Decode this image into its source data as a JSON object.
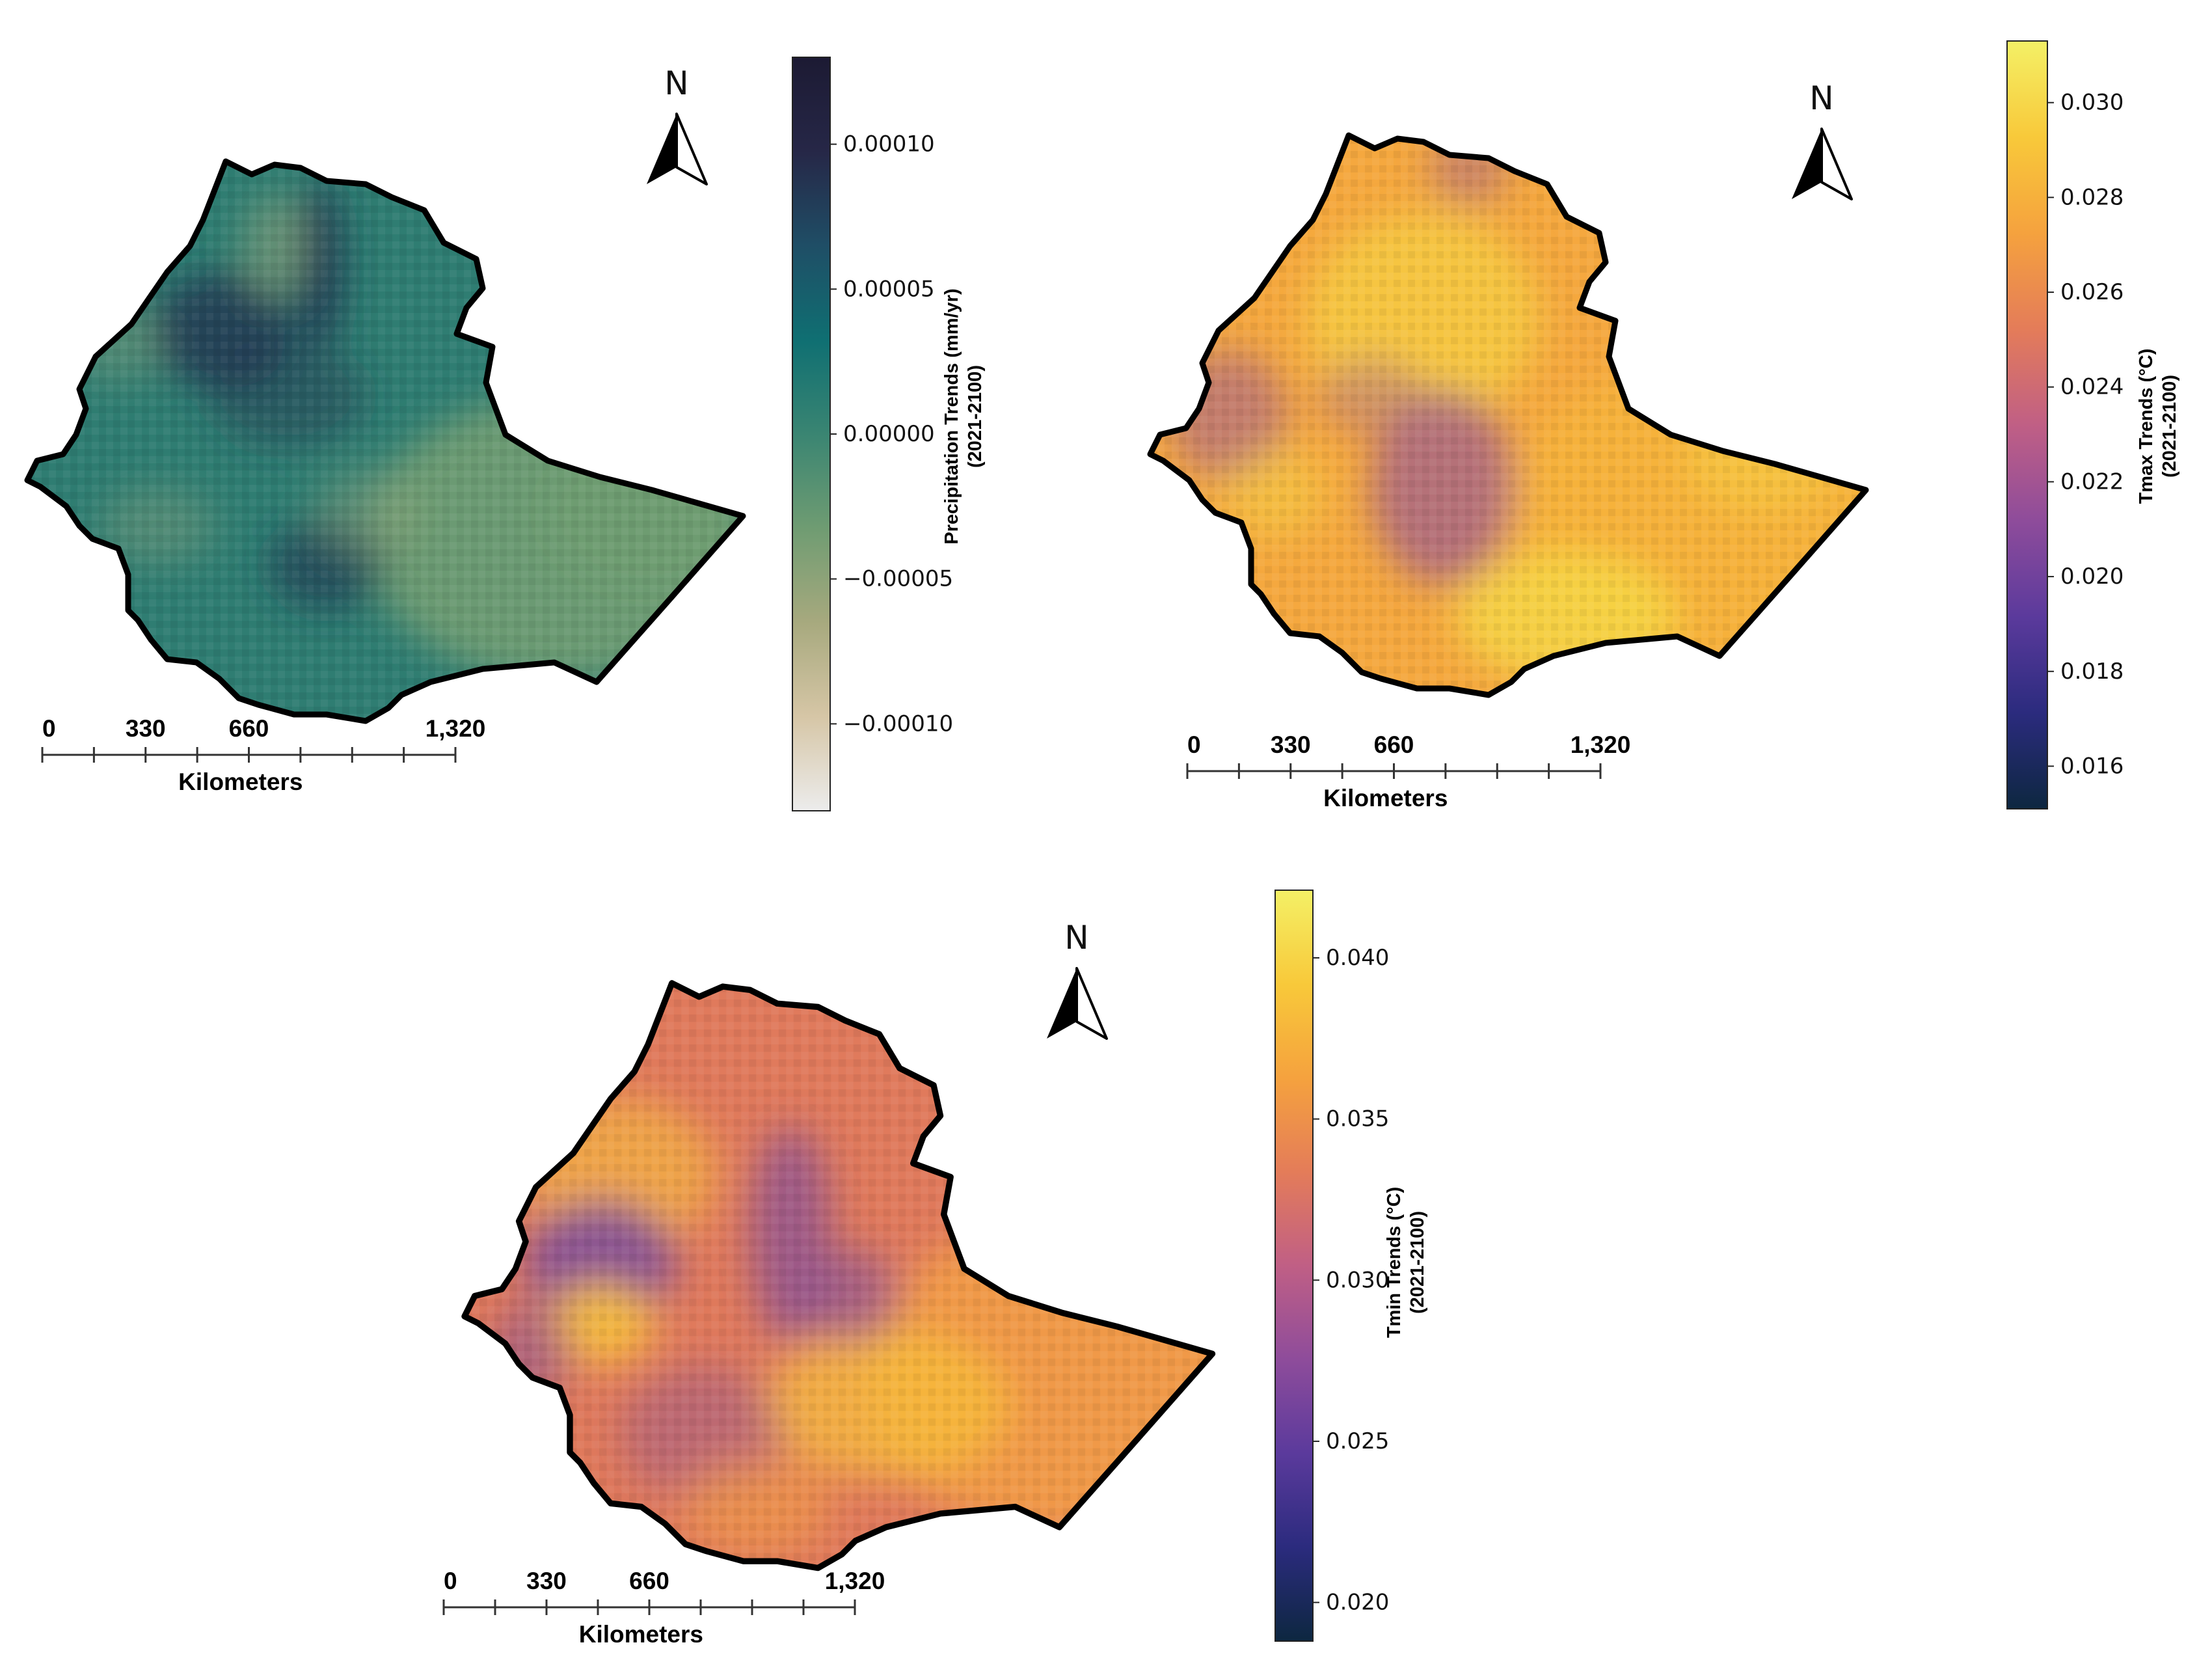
{
  "north_label": "N",
  "scale_bar": {
    "ticks": [
      "0",
      "330",
      "660",
      "1,320"
    ],
    "unit": "Kilometers"
  },
  "panels": [
    {
      "id": "precip",
      "colorbar": {
        "title_line1": "Precipitation Trends (mm/yr)",
        "title_line2": "(2021-2100)",
        "ticks": [
          "0.00010",
          "0.00005",
          "0.00000",
          "−0.00005",
          "−0.00010"
        ],
        "tick_values": [
          0.0001,
          5e-05,
          0,
          -5e-05,
          -0.0001
        ],
        "range": [
          -0.00013,
          0.00013
        ],
        "colors": [
          "#ececec",
          "#d6c6a6",
          "#a7a97e",
          "#6f9c72",
          "#3a8572",
          "#0f6f72",
          "#1f4e66",
          "#262747",
          "#1c1a33"
        ]
      },
      "map_colors": {
        "base": "#2f7d72",
        "east": "#6f9c72",
        "dark": "#22334f",
        "light": "#8fa37a"
      }
    },
    {
      "id": "tmax",
      "colorbar": {
        "title_line1": "Tmax Trends (°C)",
        "title_line2": "(2021-2100)",
        "ticks": [
          "0.030",
          "0.028",
          "0.026",
          "0.024",
          "0.022",
          "0.020",
          "0.018",
          "0.016"
        ],
        "tick_values": [
          0.03,
          0.028,
          0.026,
          0.024,
          0.022,
          0.02,
          0.018,
          0.016
        ],
        "range": [
          0.0151,
          0.0313
        ],
        "colors": [
          "#0d2740",
          "#2b2b7e",
          "#5b3a9c",
          "#8e4c9b",
          "#c05f85",
          "#e47c59",
          "#f5a23e",
          "#f8c93a",
          "#f4f066"
        ]
      },
      "map_colors": {
        "base": "#f5a83f",
        "east": "#f6b23c",
        "dark": "#9a5a92",
        "light": "#f6dc45"
      }
    },
    {
      "id": "tmin",
      "colorbar": {
        "title_line1": "Tmin Trends (°C)",
        "title_line2": "(2021-2100)",
        "ticks": [
          "0.040",
          "0.035",
          "0.030",
          "0.025",
          "0.020"
        ],
        "tick_values": [
          0.04,
          0.035,
          0.03,
          0.025,
          0.02
        ],
        "range": [
          0.0188,
          0.0421
        ],
        "colors": [
          "#0d2740",
          "#2b2b7e",
          "#5b3a9c",
          "#8e4c9b",
          "#c05f85",
          "#e47c59",
          "#f5a23e",
          "#f8c93a",
          "#f4f066"
        ]
      },
      "map_colors": {
        "base": "#e07a5c",
        "east": "#f29c46",
        "dark": "#7b4a9c",
        "light": "#f8c03a"
      }
    }
  ]
}
